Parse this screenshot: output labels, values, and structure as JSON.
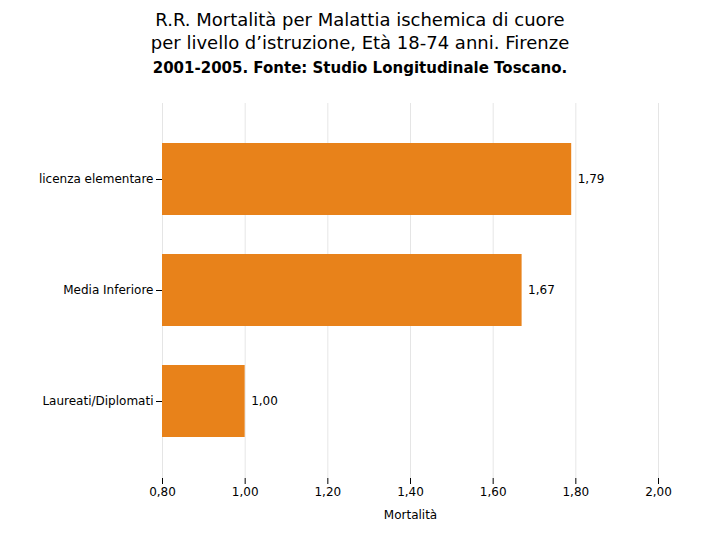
{
  "chart_data": {
    "type": "bar",
    "orientation": "horizontal",
    "title": "R.R. Mortalità per Malattia ischemica di cuore\nper livello d’istruzione, Età 18-74 anni. Firenze",
    "subtitle": "2001-2005. Fonte: Studio Longitudinale Toscano.",
    "xlabel": "Mortalità",
    "categories": [
      "Laureati/Diplomati",
      "Media Inferiore",
      "licenza elementare"
    ],
    "values": [
      1.0,
      1.67,
      1.79
    ],
    "value_labels": [
      "1,00",
      "1,67",
      "1,79"
    ],
    "data_labels": true,
    "color": "#E8821A",
    "xlim": [
      0.8,
      2.0
    ],
    "xticks": [
      {
        "value": 0.8,
        "label": "0,80"
      },
      {
        "value": 1.0,
        "label": "1,00"
      },
      {
        "value": 1.2,
        "label": "1,20"
      },
      {
        "value": 1.4,
        "label": "1,40"
      },
      {
        "value": 1.6,
        "label": "1,60"
      },
      {
        "value": 1.8,
        "label": "1,80"
      },
      {
        "value": 2.0,
        "label": "2,00"
      }
    ],
    "grid": true
  }
}
